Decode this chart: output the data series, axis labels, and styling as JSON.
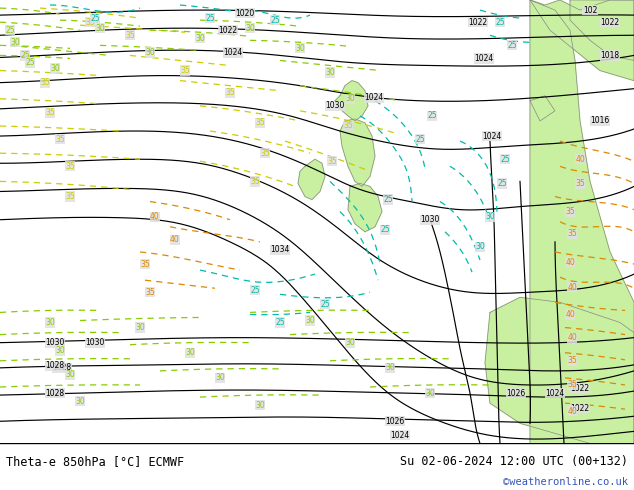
{
  "title_left": "Theta-e 850hPa [°C] ECMWF",
  "title_right": "Su 02-06-2024 12:00 UTC (00+132)",
  "credit": "©weatheronline.co.uk",
  "map_bg": "#e0e0e0",
  "land_color": "#c8f0a0",
  "border_color": "#000000",
  "fig_width": 6.34,
  "fig_height": 4.9,
  "dpi": 100,
  "title_fontsize": 8.5,
  "credit_fontsize": 7.5,
  "credit_color": "#3355bb",
  "yellow_color": "#cccc00",
  "yellow_green_color": "#88cc00",
  "orange_color": "#dd8800",
  "cyan_color": "#00bbaa",
  "isobar_color": "#000000",
  "land_outline_color": "#888888",
  "label_bar_color": "#ffffff"
}
